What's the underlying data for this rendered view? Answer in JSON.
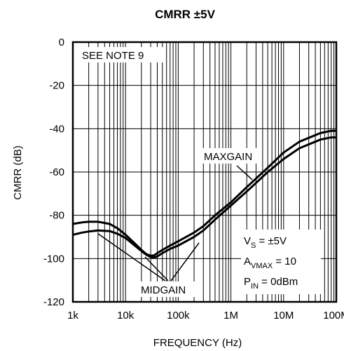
{
  "chart_data": {
    "type": "line",
    "title": "CMRR ±5V",
    "xlabel": "FREQUENCY (Hz)",
    "ylabel": "CMRR (dB)",
    "x_scale": "log",
    "xlim": [
      1000,
      100000000
    ],
    "ylim": [
      -120,
      0
    ],
    "x_ticks": [
      1000,
      10000,
      100000,
      1000000,
      10000000,
      100000000
    ],
    "x_tick_labels": [
      "1k",
      "10k",
      "100k",
      "1M",
      "10M",
      "100M"
    ],
    "y_ticks": [
      0,
      -20,
      -40,
      -60,
      -80,
      -100,
      -120
    ],
    "y_tick_labels": [
      "0",
      "-20",
      "-40",
      "-60",
      "-80",
      "-100",
      "-120"
    ],
    "grid": true,
    "series": [
      {
        "name": "MAXGAIN",
        "x": [
          1000,
          1500,
          2000,
          3000,
          5000,
          7000,
          10000,
          15000,
          20000,
          25000,
          30000,
          35000,
          40000,
          50000,
          70000,
          100000,
          200000,
          300000,
          500000,
          1000000,
          2000000,
          5000000,
          10000000,
          20000000,
          50000000,
          80000000,
          100000000
        ],
        "y": [
          -84,
          -83.3,
          -83,
          -83,
          -84,
          -86,
          -89,
          -93,
          -96,
          -98,
          -98.7,
          -98.5,
          -97.5,
          -96,
          -94,
          -92,
          -88,
          -85,
          -80,
          -74,
          -67,
          -58,
          -51,
          -46,
          -42,
          -41,
          -41
        ]
      },
      {
        "name": "MIDGAIN",
        "x": [
          1000,
          1500,
          2000,
          3000,
          5000,
          7000,
          10000,
          15000,
          20000,
          25000,
          30000,
          35000,
          40000,
          50000,
          70000,
          100000,
          200000,
          300000,
          500000,
          1000000,
          2000000,
          5000000,
          10000000,
          20000000,
          50000000,
          80000000,
          100000000
        ],
        "y": [
          -89,
          -88,
          -87.5,
          -87,
          -87.3,
          -88.5,
          -90.5,
          -94,
          -96.5,
          -98.3,
          -99.3,
          -99.5,
          -99,
          -97.5,
          -95.5,
          -94,
          -90,
          -87,
          -82,
          -75.5,
          -69,
          -60,
          -54,
          -49,
          -45,
          -44,
          -44
        ]
      }
    ],
    "annotations": {
      "note": "SEE NOTE 9",
      "maxgain": "MAXGAIN",
      "midgain": "MIDGAIN",
      "cond1_main": "V",
      "cond1_sub": "S",
      "cond1_rest": " = ±5V",
      "cond2_main": "A",
      "cond2_sub": "VMAX",
      "cond2_rest": " = 10",
      "cond3_main": "P",
      "cond3_sub": "IN",
      "cond3_rest": " = 0dBm"
    }
  }
}
